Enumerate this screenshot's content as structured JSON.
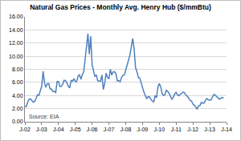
{
  "chart_data": {
    "type": "line",
    "title": "Natural Gas Prices - Monthly Avg. Henry Hub ($/mmBtu)",
    "annotations": [
      "Source: EIA"
    ],
    "categories": [
      "J-02",
      null,
      null,
      null,
      null,
      null,
      null,
      null,
      null,
      null,
      null,
      null,
      "J-03",
      null,
      null,
      null,
      null,
      null,
      null,
      null,
      null,
      null,
      null,
      null,
      "J-04",
      null,
      null,
      null,
      null,
      null,
      null,
      null,
      null,
      null,
      null,
      null,
      "J-05",
      null,
      null,
      null,
      null,
      null,
      null,
      null,
      null,
      null,
      null,
      null,
      "J-06",
      null,
      null,
      null,
      null,
      null,
      null,
      null,
      null,
      null,
      null,
      null,
      "J-07",
      null,
      null,
      null,
      null,
      null,
      null,
      null,
      null,
      null,
      null,
      null,
      "J-08",
      null,
      null,
      null,
      null,
      null,
      null,
      null,
      null,
      null,
      null,
      null,
      "J-09",
      null,
      null,
      null,
      null,
      null,
      null,
      null,
      null,
      null,
      null,
      null,
      "J-10",
      null,
      null,
      null,
      null,
      null,
      null,
      null,
      null,
      null,
      null,
      null,
      "J-11",
      null,
      null,
      null,
      null,
      null,
      null,
      null,
      null,
      null,
      null,
      null,
      "J-12",
      null,
      null,
      null,
      null,
      null,
      null,
      null,
      null,
      null,
      null,
      null,
      "J-13",
      null,
      null,
      null,
      null,
      null,
      null,
      null,
      null,
      null,
      null,
      null,
      "J-14"
    ],
    "values": [
      2.32,
      2.32,
      3.03,
      3.43,
      3.5,
      3.26,
      2.99,
      3.09,
      3.55,
      4.13,
      4.04,
      4.74,
      5.43,
      7.71,
      5.93,
      5.26,
      5.81,
      5.82,
      5.03,
      4.99,
      4.62,
      4.63,
      4.47,
      6.13,
      6.14,
      5.37,
      5.39,
      5.71,
      6.33,
      6.27,
      5.93,
      5.41,
      5.15,
      6.35,
      6.17,
      6.58,
      6.15,
      6.14,
      6.96,
      7.16,
      6.47,
      7.18,
      7.63,
      9.53,
      11.75,
      13.42,
      10.3,
      13.05,
      8.69,
      7.54,
      6.89,
      7.16,
      6.25,
      6.21,
      6.17,
      7.14,
      4.9,
      5.85,
      7.41,
      6.73,
      6.55,
      8.0,
      7.11,
      7.6,
      7.64,
      7.35,
      6.22,
      6.29,
      6.08,
      6.74,
      7.1,
      7.11,
      7.99,
      8.54,
      9.41,
      10.18,
      11.27,
      12.69,
      11.09,
      8.26,
      7.67,
      6.74,
      6.68,
      5.82,
      5.24,
      4.52,
      3.96,
      3.5,
      3.83,
      3.8,
      3.38,
      3.14,
      2.99,
      4.01,
      3.66,
      5.35,
      5.83,
      5.32,
      4.29,
      4.03,
      4.14,
      4.8,
      4.63,
      4.32,
      3.89,
      3.43,
      3.71,
      4.25,
      4.49,
      4.09,
      3.97,
      4.24,
      4.31,
      4.54,
      4.42,
      4.06,
      3.9,
      3.57,
      3.24,
      3.17,
      2.67,
      2.5,
      2.17,
      1.95,
      2.43,
      2.46,
      2.95,
      2.84,
      2.85,
      3.32,
      3.54,
      3.34,
      3.33,
      3.33,
      3.81,
      4.17,
      4.04,
      3.83,
      3.62,
      3.43,
      3.62,
      3.68,
      3.64,
      null,
      null
    ],
    "color": "#4f81bd",
    "ylim": [
      0,
      16
    ],
    "yticks": [
      {
        "value": 0,
        "label": "0.00"
      },
      {
        "value": 2,
        "label": "2.00"
      },
      {
        "value": 4,
        "label": "4.00"
      },
      {
        "value": 6,
        "label": "6.00"
      },
      {
        "value": 8,
        "label": "8.00"
      },
      {
        "value": 10,
        "label": "10.00"
      },
      {
        "value": 12,
        "label": "12.00"
      },
      {
        "value": 14,
        "label": "14.00"
      },
      {
        "value": 16,
        "label": "16.00"
      }
    ],
    "grid": true
  }
}
